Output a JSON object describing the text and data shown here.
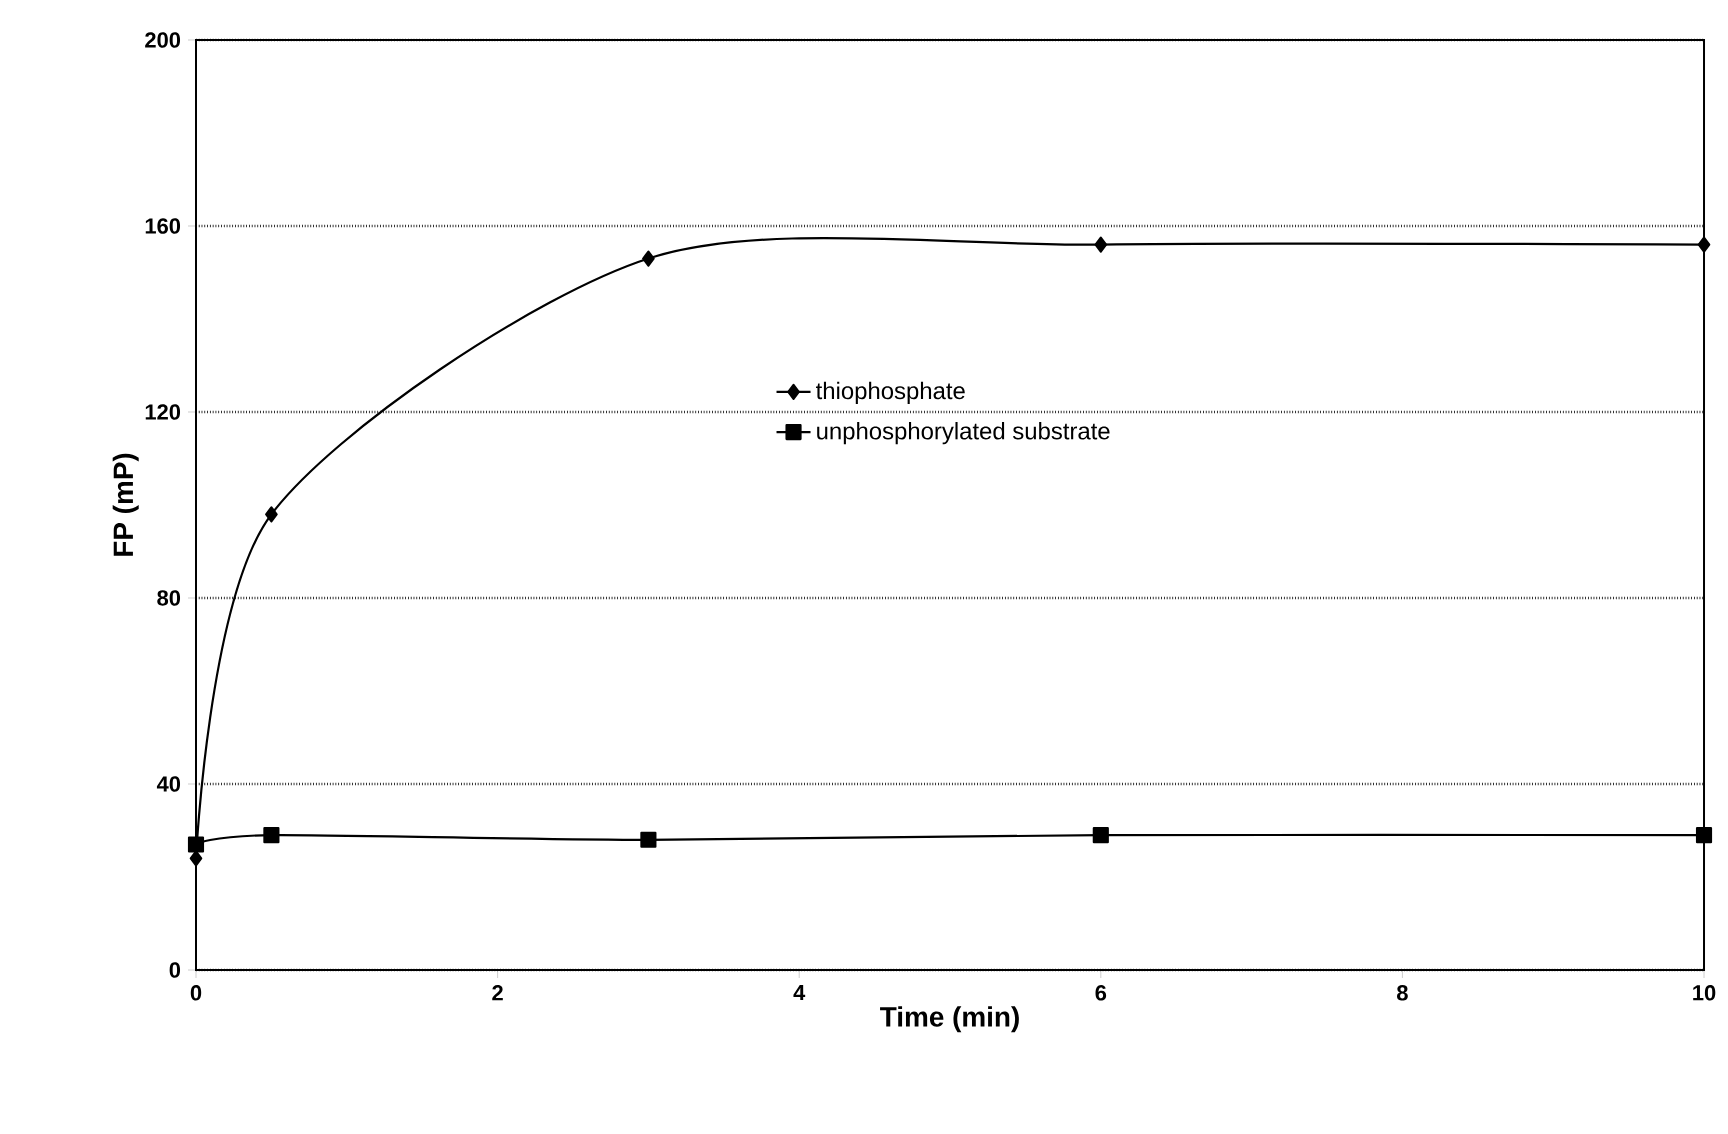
{
  "chart_data": {
    "type": "line",
    "xlabel": "Time (min)",
    "ylabel": "FP (mP)",
    "x": [
      0,
      0.5,
      3,
      6,
      10
    ],
    "series": [
      {
        "name": "thiophosphate",
        "color": "#000000",
        "marker": "diamond",
        "values": [
          24,
          98,
          153,
          156,
          156
        ]
      },
      {
        "name": "unphosphorylated substrate",
        "color": "#000000",
        "marker": "square",
        "values": [
          27,
          29,
          28,
          29,
          29
        ]
      }
    ],
    "xlim": [
      0,
      10
    ],
    "ylim": [
      0,
      200
    ],
    "xticks": [
      0,
      2,
      4,
      6,
      8,
      10
    ],
    "yticks": [
      0,
      40,
      80,
      120,
      160,
      200
    ],
    "grid": "y",
    "legend": "right",
    "line_style": "solid"
  }
}
